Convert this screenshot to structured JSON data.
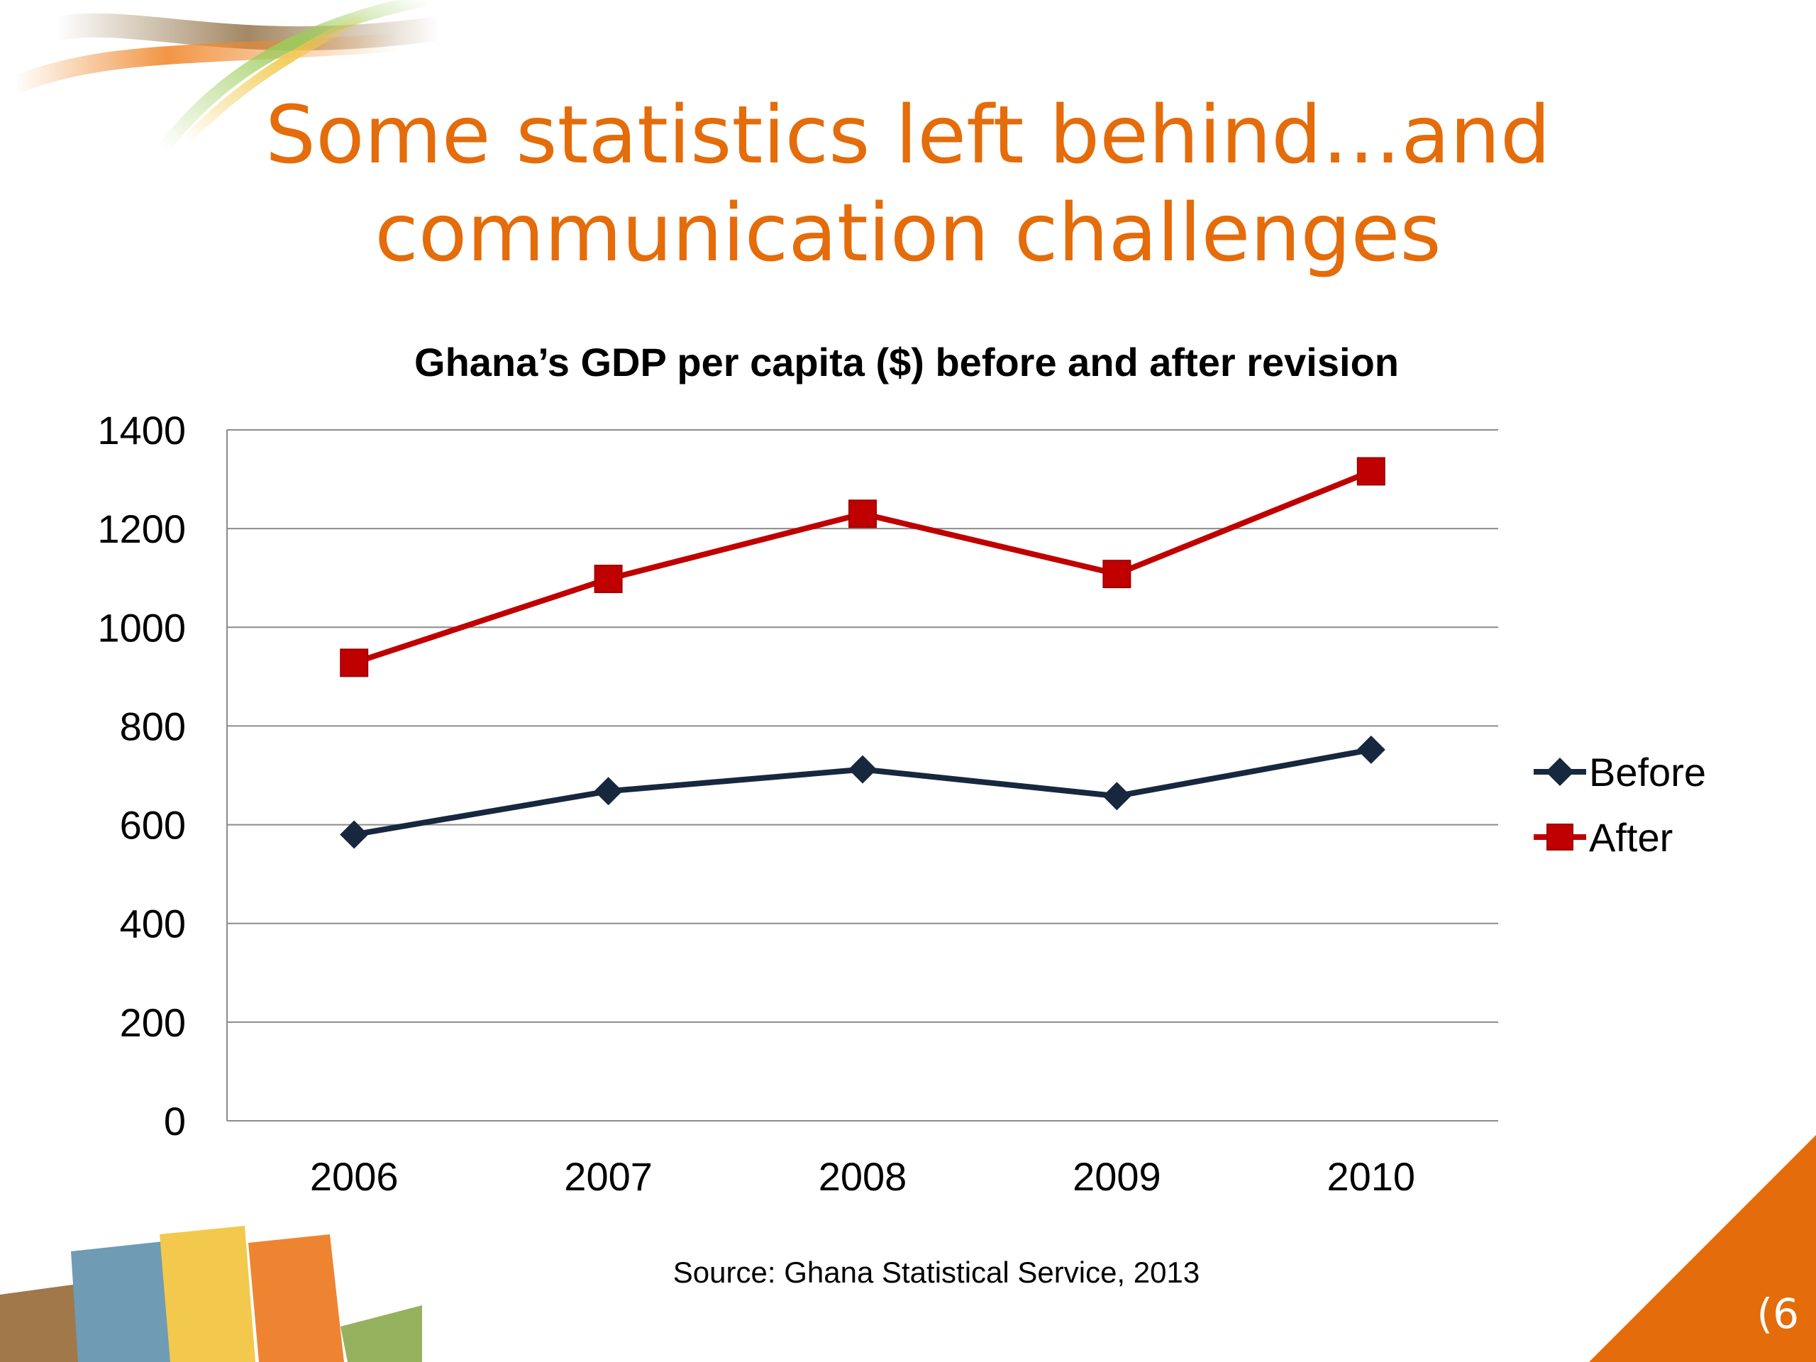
{
  "slide": {
    "title_line1": "Some statistics left behind…and",
    "title_line2": "communication challenges",
    "source": "Source: Ghana Statistical Service, 2013",
    "page_number": "(6"
  },
  "colors": {
    "title": "#e46c0a",
    "before_series": "#17283e",
    "after_series": "#c00000",
    "gridline": "#8c8c8c",
    "corner_triangle": "#e46c0a"
  },
  "chart_data": {
    "type": "line",
    "title": "Ghana’s GDP per capita ($) before and after revision",
    "categories": [
      "2006",
      "2007",
      "2008",
      "2009",
      "2010"
    ],
    "series": [
      {
        "name": "Before",
        "values": [
          580,
          668,
          712,
          658,
          752
        ],
        "marker": "diamond",
        "color": "#17283e"
      },
      {
        "name": "After",
        "values": [
          928,
          1098,
          1230,
          1108,
          1316
        ],
        "marker": "square",
        "color": "#c00000"
      }
    ],
    "ylim": [
      0,
      1400
    ],
    "yticks": [
      0,
      200,
      400,
      600,
      800,
      1000,
      1200,
      1400
    ],
    "grid": true,
    "legend_position": "right"
  }
}
